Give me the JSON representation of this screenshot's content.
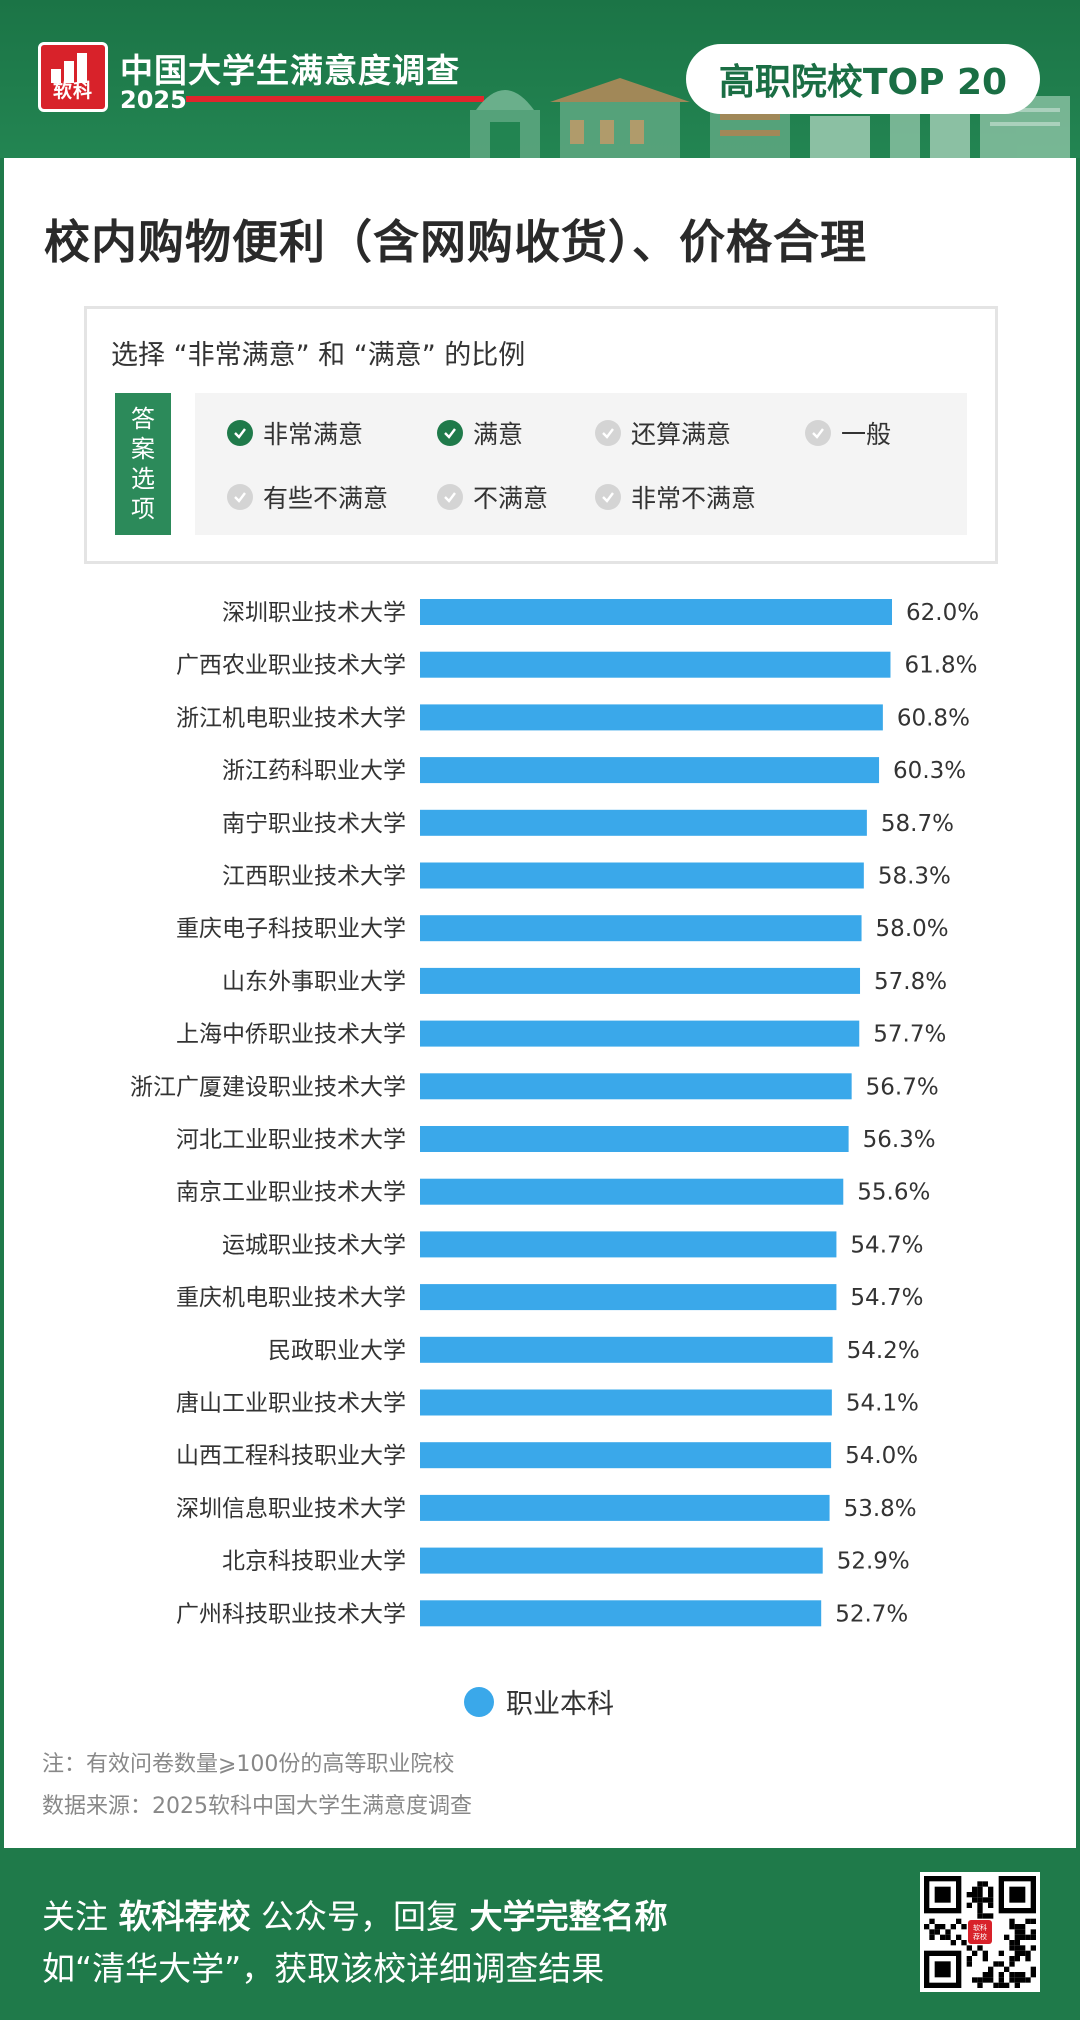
{
  "header": {
    "logo_text": "软科",
    "title": "中国大学生满意度调查",
    "year": "2025",
    "badge": "高职院校TOP 20"
  },
  "page_title": "校内购物便利（含网购收货）、价格合理",
  "options": {
    "caption": "选择 “非常满意” 和 “满意” 的比例",
    "tag": "答案选项",
    "items": [
      {
        "label": "非常满意",
        "selected": true
      },
      {
        "label": "满意",
        "selected": true
      },
      {
        "label": "还算满意",
        "selected": false
      },
      {
        "label": "一般",
        "selected": false
      },
      {
        "label": "有些不满意",
        "selected": false
      },
      {
        "label": "不满意",
        "selected": false
      },
      {
        "label": "非常不满意",
        "selected": false
      }
    ]
  },
  "chart_data": {
    "type": "bar",
    "orientation": "horizontal",
    "categories": [
      "深圳职业技术大学",
      "广西农业职业技术大学",
      "浙江机电职业技术大学",
      "浙江药科职业大学",
      "南宁职业技术大学",
      "江西职业技术大学",
      "重庆电子科技职业大学",
      "山东外事职业大学",
      "上海中侨职业技术大学",
      "浙江广厦建设职业技术大学",
      "河北工业职业技术大学",
      "南京工业职业技术大学",
      "运城职业技术大学",
      "重庆机电职业技术大学",
      "民政职业大学",
      "唐山工业职业技术大学",
      "山西工程科技职业大学",
      "深圳信息职业技术大学",
      "北京科技职业大学",
      "广州科技职业技术大学"
    ],
    "series": [
      {
        "name": "职业本科",
        "color": "#3aa8ea",
        "values": [
          62.0,
          61.8,
          60.8,
          60.3,
          58.7,
          58.3,
          58.0,
          57.8,
          57.7,
          56.7,
          56.3,
          55.6,
          54.7,
          54.7,
          54.2,
          54.1,
          54.0,
          53.8,
          52.9,
          52.7
        ]
      }
    ],
    "value_labels": [
      "62.0%",
      "61.8%",
      "60.8%",
      "60.3%",
      "58.7%",
      "58.3%",
      "58.0%",
      "57.8%",
      "57.7%",
      "56.7%",
      "56.3%",
      "55.6%",
      "54.7%",
      "54.7%",
      "54.2%",
      "54.1%",
      "54.0%",
      "53.8%",
      "52.9%",
      "52.7%"
    ],
    "xlim": [
      0,
      62.0
    ],
    "grid": false,
    "legend_position": "bottom"
  },
  "legend_label": "职业本科",
  "notes": [
    "注：有效问卷数量⩾100份的高等职业院校",
    "数据来源：2025软科中国大学生满意度调查"
  ],
  "footer": {
    "line1_a": "关注 ",
    "line1_b": "软科荐校",
    "line1_c": " 公众号，回复 ",
    "line1_d": "大学完整名称",
    "line2": "如“清华大学”，获取该校详细调查结果",
    "qr_center": "软科荐校"
  }
}
